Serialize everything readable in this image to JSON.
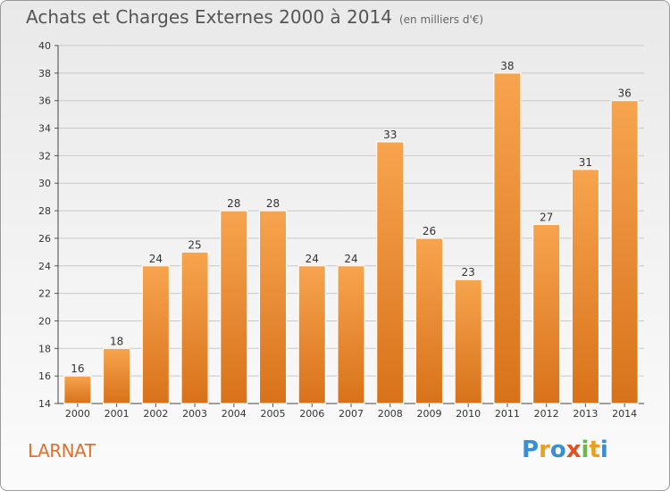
{
  "header": {
    "title": "Achats et Charges Externes 2000 à 2014",
    "subtitle": "(en milliers d'€)"
  },
  "place_name": "LARNAT",
  "logo": {
    "letters": [
      "P",
      "r",
      "o",
      "x",
      "i",
      "t",
      "i"
    ],
    "colors": [
      "#3a8fd0",
      "#e8a020",
      "#3a8fd0",
      "#e05020",
      "#6ab84a",
      "#e8a020",
      "#3a8fd0"
    ]
  },
  "chart_data": {
    "type": "bar",
    "categories": [
      "2000",
      "2001",
      "2002",
      "2003",
      "2004",
      "2005",
      "2006",
      "2007",
      "2008",
      "2009",
      "2010",
      "2011",
      "2012",
      "2013",
      "2014"
    ],
    "values": [
      16,
      18,
      24,
      25,
      28,
      28,
      24,
      24,
      33,
      26,
      23,
      38,
      27,
      31,
      36
    ],
    "ylim": [
      14,
      40
    ],
    "yticks": [
      14,
      16,
      18,
      20,
      22,
      24,
      26,
      28,
      30,
      32,
      34,
      36,
      38,
      40
    ],
    "grid": true,
    "bar_color_top": "#f7a44e",
    "bar_color_bottom": "#d8721a"
  }
}
